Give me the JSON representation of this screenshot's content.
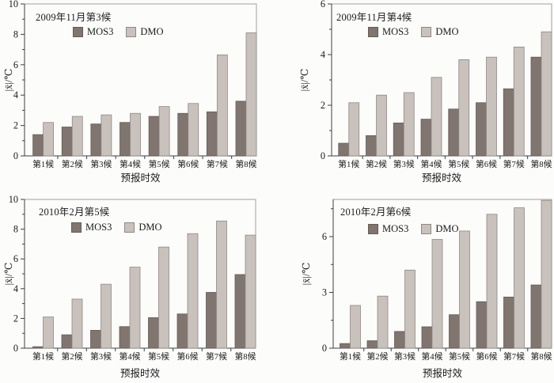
{
  "figure": {
    "background": "#fcfcfb"
  },
  "colors": {
    "mos3_fill": "#80756f",
    "mos3_border": "#645b57",
    "dmo_fill": "#c9c1bc",
    "dmo_border": "#8f8986",
    "axis": "#3f3f3f",
    "box": "#a3a09d",
    "text": "#1a1a1a"
  },
  "chart_data": [
    {
      "type": "bar",
      "title": "2009年11月第3候",
      "categories": [
        "第1候",
        "第2候",
        "第3候",
        "第4候",
        "第5候",
        "第6候",
        "第7候",
        "第8候"
      ],
      "series": [
        {
          "name": "MOS3",
          "values": [
            1.4,
            1.9,
            2.1,
            2.2,
            2.6,
            2.8,
            2.9,
            3.6
          ]
        },
        {
          "name": "DMO",
          "values": [
            2.2,
            2.6,
            2.7,
            2.8,
            3.25,
            3.45,
            6.65,
            8.1
          ]
        }
      ],
      "xlabel": "预报时效",
      "ylabel": "|x̄|/℃",
      "ylim": [
        0,
        10
      ],
      "yticks": [
        0,
        2,
        4,
        6,
        8,
        10
      ],
      "yticks_minor": [
        1,
        3,
        5,
        7,
        9
      ],
      "legend_position": "inside-top",
      "grid": false
    },
    {
      "type": "bar",
      "title": "2009年11月第4候",
      "categories": [
        "第1候",
        "第2候",
        "第3候",
        "第4候",
        "第5候",
        "第6候",
        "第7候",
        "第8候"
      ],
      "series": [
        {
          "name": "MOS3",
          "values": [
            0.5,
            0.8,
            1.3,
            1.45,
            1.85,
            2.1,
            2.65,
            3.9
          ]
        },
        {
          "name": "DMO",
          "values": [
            2.1,
            2.4,
            2.5,
            3.1,
            3.8,
            3.9,
            4.3,
            4.9
          ]
        }
      ],
      "xlabel": "预报时效",
      "ylabel": "|x̄|/℃",
      "ylim": [
        0,
        6
      ],
      "yticks": [
        0,
        2,
        4,
        6
      ],
      "yticks_minor": [
        1,
        3,
        5
      ],
      "legend_position": "inside-top",
      "grid": false
    },
    {
      "type": "bar",
      "title": "2010年2月第5候",
      "categories": [
        "第1候",
        "第2候",
        "第3候",
        "第4候",
        "第5候",
        "第6候",
        "第7候",
        "第8候"
      ],
      "series": [
        {
          "name": "MOS3",
          "values": [
            0.1,
            0.9,
            1.2,
            1.45,
            2.05,
            2.3,
            3.75,
            4.95
          ]
        },
        {
          "name": "DMO",
          "values": [
            2.1,
            3.3,
            4.3,
            5.45,
            6.8,
            7.7,
            8.55,
            7.6
          ]
        }
      ],
      "xlabel": "预报时效",
      "ylabel": "|x̄|/℃",
      "ylim": [
        0,
        10
      ],
      "yticks": [
        0,
        2,
        4,
        6,
        8,
        10
      ],
      "yticks_minor": [
        1,
        3,
        5,
        7,
        9
      ],
      "legend_position": "inside-top",
      "grid": false
    },
    {
      "type": "bar",
      "title": "2010年2月第6候",
      "categories": [
        "第1候",
        "第2候",
        "第3候",
        "第4候",
        "第5候",
        "第6候",
        "第7候",
        "第8候"
      ],
      "series": [
        {
          "name": "MOS3",
          "values": [
            0.25,
            0.4,
            0.9,
            1.15,
            1.8,
            2.5,
            2.75,
            3.4
          ]
        },
        {
          "name": "DMO",
          "values": [
            2.3,
            2.8,
            4.2,
            5.85,
            6.3,
            7.2,
            7.55,
            7.95
          ]
        }
      ],
      "xlabel": "预报时效",
      "ylabel": "|x̄|/℃",
      "ylim": [
        0,
        8
      ],
      "yticks": [
        0,
        3,
        6
      ],
      "yticks_minor": [
        1.5,
        4.5,
        7.5
      ],
      "legend_position": "inside-top",
      "grid": false
    }
  ]
}
